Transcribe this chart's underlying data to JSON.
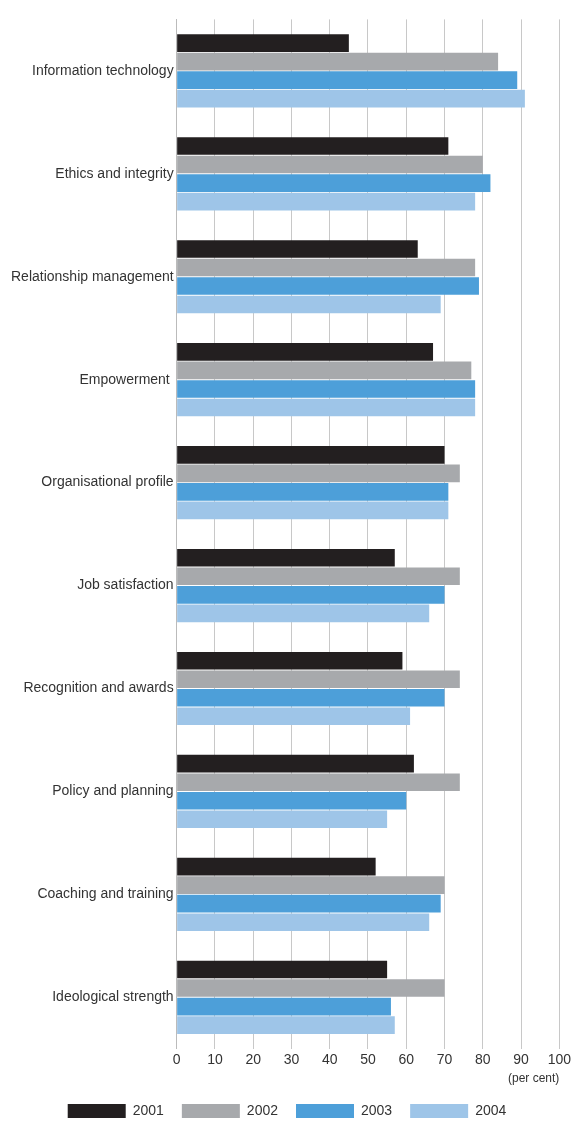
{
  "chart_data": {
    "type": "bar",
    "orientation": "horizontal",
    "categories": [
      "Information technology",
      "Ethics and integrity",
      "Relationship management",
      "Empowerment ",
      "Organisational profile",
      "Job satisfaction",
      "Recognition and awards",
      "Policy and planning",
      "Coaching and training",
      "Ideological strength"
    ],
    "series": [
      {
        "name": "2001",
        "color": "#231f20",
        "values": [
          45,
          71,
          63,
          67,
          70,
          57,
          59,
          62,
          52,
          55
        ]
      },
      {
        "name": "2002",
        "color": "#a7a9ac",
        "values": [
          84,
          80,
          78,
          77,
          74,
          74,
          74,
          74,
          70,
          70
        ]
      },
      {
        "name": "2003",
        "color": "#4d9fd9",
        "values": [
          89,
          82,
          79,
          78,
          71,
          70,
          70,
          60,
          69,
          56
        ]
      },
      {
        "name": "2004",
        "color": "#9ec5e8",
        "values": [
          91,
          78,
          69,
          78,
          71,
          66,
          61,
          55,
          66,
          57
        ]
      }
    ],
    "xlim": [
      0,
      100
    ],
    "xticks": [
      0,
      10,
      20,
      30,
      40,
      50,
      60,
      70,
      80,
      90,
      100
    ],
    "xlabel": "(per cent)",
    "grid": "x",
    "legend": "bottom"
  }
}
